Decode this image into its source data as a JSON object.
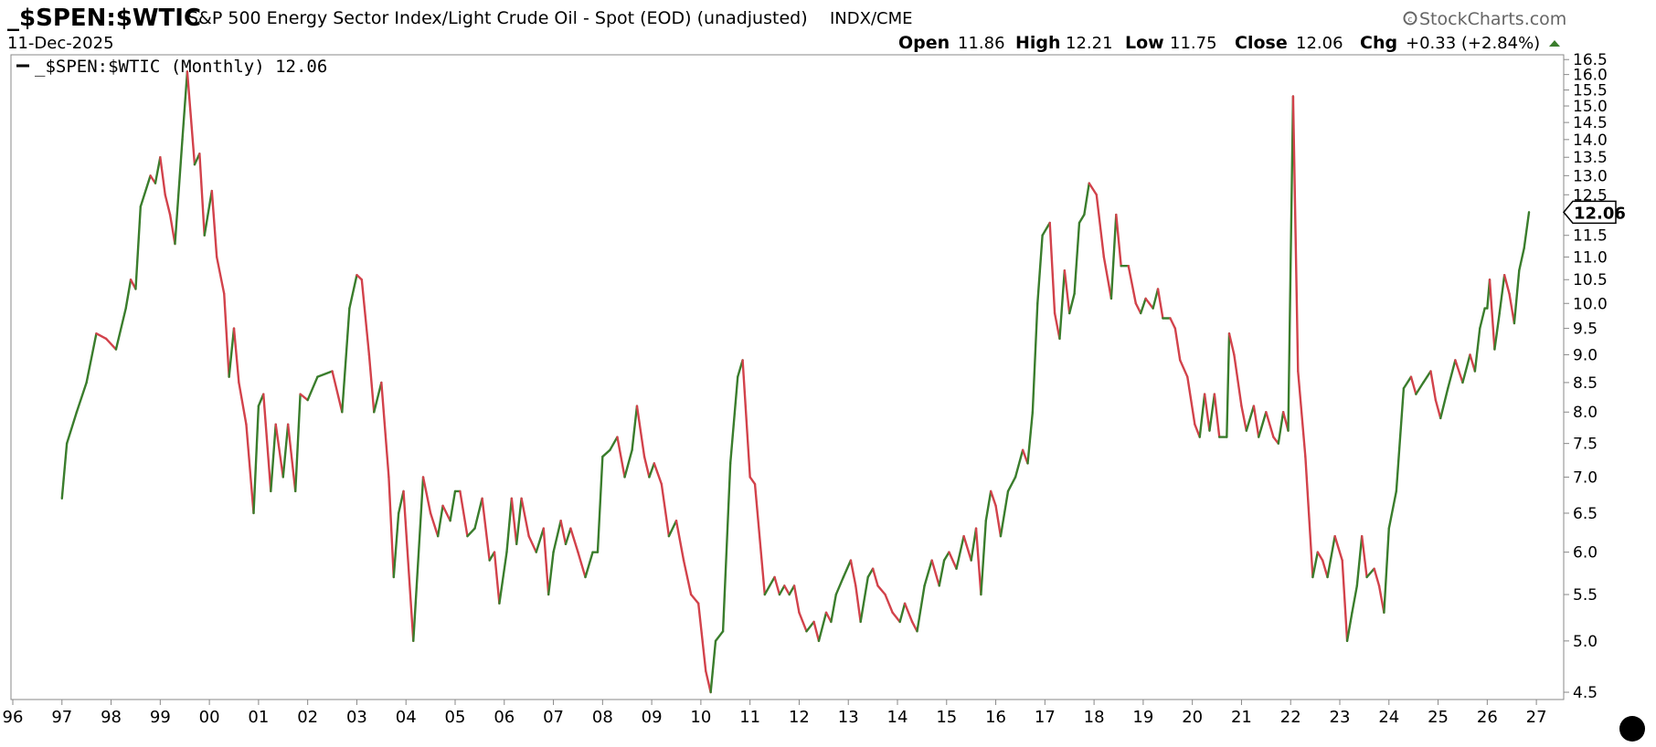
{
  "header": {
    "symbol": "_$SPEN:$WTIC",
    "description": "S&P 500 Energy Sector Index/Light Crude Oil - Spot (EOD) (unadjusted)",
    "exchange": "INDX/CME",
    "date": "11-Dec-2025",
    "brand": "StockCharts.com",
    "ohlc": {
      "open_label": "Open",
      "open": "11.86",
      "high_label": "High",
      "high": "12.21",
      "low_label": "Low",
      "low": "11.75",
      "close_label": "Close",
      "close": "12.06",
      "chg_label": "Chg",
      "chg": "+0.33 (+2.84%)"
    }
  },
  "legend": {
    "label": "_$SPEN:$WTIC (Monthly) 12.06"
  },
  "price_tag": "12.06",
  "colors": {
    "up": "#3a7d2c",
    "down": "#d2424b",
    "axis": "#888888",
    "grid": "#dddddd",
    "tag_border": "#000000",
    "brand_icon": "#666666"
  },
  "chart_data": {
    "type": "line",
    "title": "_$SPEN:$WTIC",
    "xlabel": "",
    "ylabel": "",
    "scale": "log",
    "ylim": [
      4.45,
      16.6
    ],
    "xlim": [
      1996.0,
      2027.5
    ],
    "x_tick_labels": [
      "96",
      "97",
      "98",
      "99",
      "00",
      "01",
      "02",
      "03",
      "04",
      "05",
      "06",
      "07",
      "08",
      "09",
      "10",
      "11",
      "12",
      "13",
      "14",
      "15",
      "16",
      "17",
      "18",
      "19",
      "20",
      "21",
      "22",
      "23",
      "24",
      "25",
      "26",
      "27"
    ],
    "y_tick_labels": [
      "4.5",
      "5.0",
      "5.5",
      "6.0",
      "6.5",
      "7.0",
      "7.5",
      "8.0",
      "8.5",
      "9.0",
      "9.5",
      "10.0",
      "10.5",
      "11.0",
      "11.5",
      "12.0",
      "12.5",
      "13.0",
      "13.5",
      "14.0",
      "14.5",
      "15.0",
      "15.5",
      "16.0",
      "16.5"
    ],
    "series": [
      {
        "name": "_$SPEN:$WTIC (Monthly)",
        "points": [
          [
            1997.0,
            6.7
          ],
          [
            1997.1,
            7.5
          ],
          [
            1997.3,
            8.0
          ],
          [
            1997.5,
            8.5
          ],
          [
            1997.7,
            9.4
          ],
          [
            1997.9,
            9.3
          ],
          [
            1998.1,
            9.1
          ],
          [
            1998.3,
            9.9
          ],
          [
            1998.4,
            10.5
          ],
          [
            1998.5,
            10.3
          ],
          [
            1998.6,
            12.2
          ],
          [
            1998.8,
            13.0
          ],
          [
            1998.9,
            12.8
          ],
          [
            1999.0,
            13.5
          ],
          [
            1999.1,
            12.5
          ],
          [
            1999.2,
            12.0
          ],
          [
            1999.3,
            11.3
          ],
          [
            1999.45,
            14.0
          ],
          [
            1999.55,
            16.1
          ],
          [
            1999.7,
            13.3
          ],
          [
            1999.8,
            13.6
          ],
          [
            1999.9,
            11.5
          ],
          [
            2000.05,
            12.6
          ],
          [
            2000.15,
            11.0
          ],
          [
            2000.3,
            10.2
          ],
          [
            2000.4,
            8.6
          ],
          [
            2000.5,
            9.5
          ],
          [
            2000.6,
            8.5
          ],
          [
            2000.75,
            7.8
          ],
          [
            2000.9,
            6.5
          ],
          [
            2001.0,
            8.1
          ],
          [
            2001.1,
            8.3
          ],
          [
            2001.25,
            6.8
          ],
          [
            2001.35,
            7.8
          ],
          [
            2001.5,
            7.0
          ],
          [
            2001.6,
            7.8
          ],
          [
            2001.75,
            6.8
          ],
          [
            2001.85,
            8.3
          ],
          [
            2002.0,
            8.2
          ],
          [
            2002.2,
            8.6
          ],
          [
            2002.5,
            8.7
          ],
          [
            2002.7,
            8.0
          ],
          [
            2002.85,
            9.9
          ],
          [
            2003.0,
            10.6
          ],
          [
            2003.1,
            10.5
          ],
          [
            2003.25,
            9.0
          ],
          [
            2003.35,
            8.0
          ],
          [
            2003.5,
            8.5
          ],
          [
            2003.65,
            7.0
          ],
          [
            2003.75,
            5.7
          ],
          [
            2003.85,
            6.5
          ],
          [
            2003.95,
            6.8
          ],
          [
            2004.15,
            5.0
          ],
          [
            2004.35,
            7.0
          ],
          [
            2004.5,
            6.5
          ],
          [
            2004.65,
            6.2
          ],
          [
            2004.75,
            6.6
          ],
          [
            2004.9,
            6.4
          ],
          [
            2005.0,
            6.8
          ],
          [
            2005.1,
            6.8
          ],
          [
            2005.25,
            6.2
          ],
          [
            2005.4,
            6.3
          ],
          [
            2005.55,
            6.7
          ],
          [
            2005.7,
            5.9
          ],
          [
            2005.8,
            6.0
          ],
          [
            2005.9,
            5.4
          ],
          [
            2006.05,
            6.0
          ],
          [
            2006.15,
            6.7
          ],
          [
            2006.25,
            6.1
          ],
          [
            2006.35,
            6.7
          ],
          [
            2006.5,
            6.2
          ],
          [
            2006.65,
            6.0
          ],
          [
            2006.8,
            6.3
          ],
          [
            2006.9,
            5.5
          ],
          [
            2007.0,
            6.0
          ],
          [
            2007.15,
            6.4
          ],
          [
            2007.25,
            6.1
          ],
          [
            2007.35,
            6.3
          ],
          [
            2007.5,
            6.0
          ],
          [
            2007.65,
            5.7
          ],
          [
            2007.8,
            6.0
          ],
          [
            2007.9,
            6.0
          ],
          [
            2008.0,
            7.3
          ],
          [
            2008.15,
            7.4
          ],
          [
            2008.3,
            7.6
          ],
          [
            2008.45,
            7.0
          ],
          [
            2008.6,
            7.4
          ],
          [
            2008.7,
            8.1
          ],
          [
            2008.85,
            7.3
          ],
          [
            2008.95,
            7.0
          ],
          [
            2009.05,
            7.2
          ],
          [
            2009.2,
            6.9
          ],
          [
            2009.35,
            6.2
          ],
          [
            2009.5,
            6.4
          ],
          [
            2009.65,
            5.9
          ],
          [
            2009.8,
            5.5
          ],
          [
            2009.95,
            5.4
          ],
          [
            2010.1,
            4.7
          ],
          [
            2010.2,
            4.5
          ],
          [
            2010.3,
            5.0
          ],
          [
            2010.45,
            5.1
          ],
          [
            2010.6,
            7.2
          ],
          [
            2010.75,
            8.6
          ],
          [
            2010.85,
            8.9
          ],
          [
            2011.0,
            7.0
          ],
          [
            2011.1,
            6.9
          ],
          [
            2011.3,
            5.5
          ],
          [
            2011.4,
            5.6
          ],
          [
            2011.5,
            5.7
          ],
          [
            2011.6,
            5.5
          ],
          [
            2011.7,
            5.6
          ],
          [
            2011.8,
            5.5
          ],
          [
            2011.9,
            5.6
          ],
          [
            2012.0,
            5.3
          ],
          [
            2012.15,
            5.1
          ],
          [
            2012.3,
            5.2
          ],
          [
            2012.4,
            5.0
          ],
          [
            2012.55,
            5.3
          ],
          [
            2012.65,
            5.2
          ],
          [
            2012.75,
            5.5
          ],
          [
            2012.9,
            5.7
          ],
          [
            2013.05,
            5.9
          ],
          [
            2013.15,
            5.6
          ],
          [
            2013.25,
            5.2
          ],
          [
            2013.4,
            5.7
          ],
          [
            2013.5,
            5.8
          ],
          [
            2013.6,
            5.6
          ],
          [
            2013.75,
            5.5
          ],
          [
            2013.9,
            5.3
          ],
          [
            2014.05,
            5.2
          ],
          [
            2014.15,
            5.4
          ],
          [
            2014.3,
            5.2
          ],
          [
            2014.4,
            5.1
          ],
          [
            2014.55,
            5.6
          ],
          [
            2014.7,
            5.9
          ],
          [
            2014.85,
            5.6
          ],
          [
            2014.95,
            5.9
          ],
          [
            2015.05,
            6.0
          ],
          [
            2015.2,
            5.8
          ],
          [
            2015.35,
            6.2
          ],
          [
            2015.5,
            5.9
          ],
          [
            2015.6,
            6.3
          ],
          [
            2015.7,
            5.5
          ],
          [
            2015.8,
            6.4
          ],
          [
            2015.9,
            6.8
          ],
          [
            2016.0,
            6.6
          ],
          [
            2016.1,
            6.2
          ],
          [
            2016.25,
            6.8
          ],
          [
            2016.4,
            7.0
          ],
          [
            2016.55,
            7.4
          ],
          [
            2016.65,
            7.2
          ],
          [
            2016.75,
            8.0
          ],
          [
            2016.85,
            10.0
          ],
          [
            2016.95,
            11.5
          ],
          [
            2017.1,
            11.8
          ],
          [
            2017.2,
            9.8
          ],
          [
            2017.3,
            9.3
          ],
          [
            2017.4,
            10.7
          ],
          [
            2017.5,
            9.8
          ],
          [
            2017.6,
            10.2
          ],
          [
            2017.7,
            11.8
          ],
          [
            2017.8,
            12.0
          ],
          [
            2017.9,
            12.8
          ],
          [
            2018.05,
            12.5
          ],
          [
            2018.2,
            11.0
          ],
          [
            2018.35,
            10.1
          ],
          [
            2018.45,
            12.0
          ],
          [
            2018.55,
            10.8
          ],
          [
            2018.7,
            10.8
          ],
          [
            2018.85,
            10.0
          ],
          [
            2018.95,
            9.8
          ],
          [
            2019.05,
            10.1
          ],
          [
            2019.2,
            9.9
          ],
          [
            2019.3,
            10.3
          ],
          [
            2019.4,
            9.7
          ],
          [
            2019.55,
            9.7
          ],
          [
            2019.65,
            9.5
          ],
          [
            2019.75,
            8.9
          ],
          [
            2019.9,
            8.6
          ],
          [
            2020.05,
            7.8
          ],
          [
            2020.15,
            7.6
          ],
          [
            2020.25,
            8.3
          ],
          [
            2020.35,
            7.7
          ],
          [
            2020.45,
            8.3
          ],
          [
            2020.55,
            7.6
          ],
          [
            2020.7,
            7.6
          ],
          [
            2020.75,
            9.4
          ],
          [
            2020.85,
            9.0
          ],
          [
            2021.0,
            8.1
          ],
          [
            2021.1,
            7.7
          ],
          [
            2021.25,
            8.1
          ],
          [
            2021.35,
            7.6
          ],
          [
            2021.5,
            8.0
          ],
          [
            2021.65,
            7.6
          ],
          [
            2021.75,
            7.5
          ],
          [
            2021.85,
            8.0
          ],
          [
            2021.95,
            7.7
          ],
          [
            2022.05,
            15.3
          ],
          [
            2022.15,
            8.7
          ],
          [
            2022.3,
            7.3
          ],
          [
            2022.45,
            5.7
          ],
          [
            2022.55,
            6.0
          ],
          [
            2022.65,
            5.9
          ],
          [
            2022.75,
            5.7
          ],
          [
            2022.9,
            6.2
          ],
          [
            2023.05,
            5.9
          ],
          [
            2023.15,
            5.0
          ],
          [
            2023.25,
            5.3
          ],
          [
            2023.35,
            5.6
          ],
          [
            2023.45,
            6.2
          ],
          [
            2023.55,
            5.7
          ],
          [
            2023.7,
            5.8
          ],
          [
            2023.8,
            5.6
          ],
          [
            2023.9,
            5.3
          ],
          [
            2024.0,
            6.3
          ],
          [
            2024.15,
            6.8
          ],
          [
            2024.3,
            8.4
          ],
          [
            2024.45,
            8.6
          ],
          [
            2024.55,
            8.3
          ],
          [
            2024.7,
            8.5
          ],
          [
            2024.85,
            8.7
          ],
          [
            2024.95,
            8.2
          ],
          [
            2025.05,
            7.9
          ],
          [
            2025.2,
            8.4
          ],
          [
            2025.35,
            8.9
          ],
          [
            2025.5,
            8.5
          ],
          [
            2025.65,
            9.0
          ],
          [
            2025.75,
            8.7
          ],
          [
            2025.85,
            9.5
          ],
          [
            2025.95,
            9.9
          ],
          [
            2026.0,
            9.9
          ],
          [
            2026.05,
            10.5
          ],
          [
            2026.15,
            9.1
          ],
          [
            2026.25,
            9.8
          ],
          [
            2026.35,
            10.6
          ],
          [
            2026.45,
            10.2
          ],
          [
            2026.55,
            9.6
          ],
          [
            2026.65,
            10.7
          ],
          [
            2026.75,
            11.2
          ],
          [
            2026.85,
            12.06
          ]
        ]
      }
    ]
  }
}
